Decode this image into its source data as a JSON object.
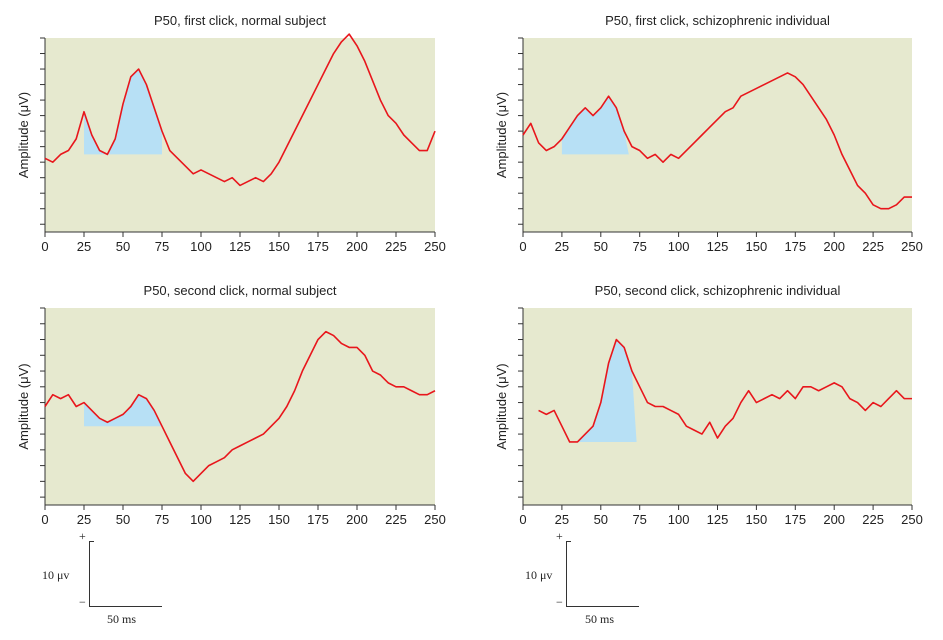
{
  "chart_data": [
    {
      "type": "line",
      "title": "P50, first click, normal subject",
      "ylabel": "Amplitude (μV)",
      "xlabel": "",
      "xlim": [
        0,
        250
      ],
      "ylim": [
        -10,
        15
      ],
      "xticks": [
        0,
        25,
        50,
        75,
        100,
        125,
        150,
        175,
        200,
        225,
        250
      ],
      "yticks": [
        -9,
        -7,
        -5,
        -3,
        -1,
        1,
        3,
        5,
        7,
        9,
        11,
        13,
        15
      ],
      "background": "#e6e9cf",
      "line_color": "#e8161c",
      "shade_color": "#b7e0f5",
      "shaded": {
        "x_start": 25,
        "x_end": 75,
        "baseline": 0
      },
      "series": [
        {
          "x": [
            0,
            5,
            10,
            15,
            20,
            25,
            30,
            35,
            40,
            45,
            50,
            55,
            60,
            65,
            70,
            75,
            80,
            85,
            90,
            95,
            100,
            105,
            110,
            115,
            120,
            125,
            130,
            135,
            140,
            145,
            150,
            155,
            160,
            165,
            170,
            175,
            180,
            185,
            190,
            195,
            200,
            205,
            210,
            215,
            220,
            225,
            230,
            235,
            240,
            245,
            250
          ],
          "y": [
            -0.5,
            -1,
            0,
            0.5,
            2,
            5.5,
            2.5,
            0.5,
            0,
            2,
            6.5,
            10,
            11,
            9,
            6,
            3,
            0.5,
            -0.5,
            -1.5,
            -2.5,
            -2,
            -2.5,
            -3,
            -3.5,
            -3,
            -4,
            -3.5,
            -3,
            -3.5,
            -2.5,
            -1,
            1,
            3,
            5,
            7,
            9,
            11,
            13,
            14.5,
            15.5,
            14,
            12,
            9.5,
            7,
            5,
            4,
            2.5,
            1.5,
            0.5,
            0.5,
            3
          ]
        }
      ]
    },
    {
      "type": "line",
      "title": "P50, first click, schizophrenic individual",
      "ylabel": "Amplitude (μV)",
      "xlabel": "",
      "xlim": [
        0,
        250
      ],
      "ylim": [
        -10,
        15
      ],
      "xticks": [
        0,
        25,
        50,
        75,
        100,
        125,
        150,
        175,
        200,
        225,
        250
      ],
      "yticks": [
        -9,
        -7,
        -5,
        -3,
        -1,
        1,
        3,
        5,
        7,
        9,
        11,
        13,
        15
      ],
      "background": "#e6e9cf",
      "line_color": "#e8161c",
      "shade_color": "#b7e0f5",
      "shaded": {
        "x_start": 25,
        "x_end": 68,
        "baseline": 0
      },
      "series": [
        {
          "x": [
            0,
            5,
            10,
            15,
            20,
            25,
            30,
            35,
            40,
            45,
            50,
            55,
            60,
            65,
            70,
            75,
            80,
            85,
            90,
            95,
            100,
            105,
            110,
            115,
            120,
            125,
            130,
            135,
            140,
            145,
            150,
            155,
            160,
            165,
            170,
            175,
            180,
            185,
            190,
            195,
            200,
            205,
            210,
            215,
            220,
            225,
            230,
            235,
            240,
            245,
            250
          ],
          "y": [
            2.5,
            4,
            1.5,
            0.5,
            1,
            2,
            3.5,
            5,
            6,
            5,
            6,
            7.5,
            6,
            3,
            1,
            0.5,
            -0.5,
            0,
            -1,
            0,
            -0.5,
            0.5,
            1.5,
            2.5,
            3.5,
            4.5,
            5.5,
            6,
            7.5,
            8,
            8.5,
            9,
            9.5,
            10,
            10.5,
            10,
            9,
            7.5,
            6,
            4.5,
            2.5,
            0,
            -2,
            -4,
            -5,
            -6.5,
            -7,
            -7,
            -6.5,
            -5.5,
            -5.5
          ]
        }
      ]
    },
    {
      "type": "line",
      "title": "P50, second click, normal subject",
      "ylabel": "Amplitude (μV)",
      "xlabel": "",
      "xlim": [
        0,
        250
      ],
      "ylim": [
        -10,
        15
      ],
      "xticks": [
        0,
        25,
        50,
        75,
        100,
        125,
        150,
        175,
        200,
        225,
        250
      ],
      "yticks": [
        -9,
        -7,
        -5,
        -3,
        -1,
        1,
        3,
        5,
        7,
        9,
        11,
        13,
        15
      ],
      "background": "#e6e9cf",
      "line_color": "#e8161c",
      "shade_color": "#b7e0f5",
      "shaded": {
        "x_start": 25,
        "x_end": 75,
        "baseline": 0
      },
      "series": [
        {
          "x": [
            0,
            5,
            10,
            15,
            20,
            25,
            30,
            35,
            40,
            45,
            50,
            55,
            60,
            65,
            70,
            75,
            80,
            85,
            90,
            95,
            100,
            105,
            110,
            115,
            120,
            125,
            130,
            135,
            140,
            145,
            150,
            155,
            160,
            165,
            170,
            175,
            180,
            185,
            190,
            195,
            200,
            205,
            210,
            215,
            220,
            225,
            230,
            235,
            240,
            245,
            250
          ],
          "y": [
            2.5,
            4,
            3.5,
            4,
            2.5,
            3,
            2,
            1,
            0.5,
            1,
            1.5,
            2.5,
            4,
            3.5,
            2,
            0,
            -2,
            -4,
            -6,
            -7,
            -6,
            -5,
            -4.5,
            -4,
            -3,
            -2.5,
            -2,
            -1.5,
            -1,
            0,
            1,
            2.5,
            4.5,
            7,
            9,
            11,
            12,
            11.5,
            10.5,
            10,
            10,
            9,
            7,
            6.5,
            5.5,
            5,
            5,
            4.5,
            4,
            4,
            4.5
          ]
        }
      ]
    },
    {
      "type": "line",
      "title": "P50, second click, schizophrenic individual",
      "ylabel": "Amplitude (μV)",
      "xlabel": "",
      "xlim": [
        0,
        250
      ],
      "ylim": [
        -10,
        15
      ],
      "xticks": [
        0,
        25,
        50,
        75,
        100,
        125,
        150,
        175,
        200,
        225,
        250
      ],
      "yticks": [
        -9,
        -7,
        -5,
        -3,
        -1,
        1,
        3,
        5,
        7,
        9,
        11,
        13,
        15
      ],
      "background": "#e6e9cf",
      "line_color": "#e8161c",
      "shade_color": "#b7e0f5",
      "shaded": {
        "x_start": 33,
        "x_end": 73,
        "baseline": -2
      },
      "series": [
        {
          "x": [
            10,
            15,
            20,
            25,
            30,
            35,
            40,
            45,
            50,
            55,
            60,
            65,
            70,
            75,
            80,
            85,
            90,
            95,
            100,
            105,
            110,
            115,
            120,
            125,
            130,
            135,
            140,
            145,
            150,
            155,
            160,
            165,
            170,
            175,
            180,
            185,
            190,
            195,
            200,
            205,
            210,
            215,
            220,
            225,
            230,
            235,
            240,
            245,
            250
          ],
          "y": [
            2,
            1.5,
            2,
            0,
            -2,
            -2,
            -1,
            0,
            3,
            8,
            11,
            10,
            7,
            5,
            3,
            2.5,
            2.5,
            2,
            1.5,
            0,
            -0.5,
            -1,
            0.5,
            -1.5,
            0,
            1,
            3,
            4.5,
            3,
            3.5,
            4,
            3.5,
            4.5,
            3.5,
            5,
            5,
            4.5,
            5,
            5.5,
            5,
            3.5,
            3,
            2,
            3,
            2.5,
            3.5,
            4.5,
            3.5,
            3.5
          ]
        }
      ]
    }
  ],
  "scale_bars": [
    {
      "plus": "+",
      "minus": "−",
      "vertical_label": "10 μv",
      "horizontal_label": "50 ms"
    },
    {
      "plus": "+",
      "minus": "−",
      "vertical_label": "10 μv",
      "horizontal_label": "50 ms"
    }
  ]
}
